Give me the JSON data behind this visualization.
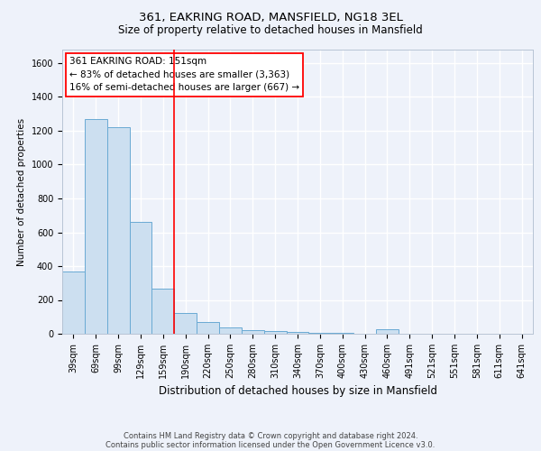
{
  "title_line1": "361, EAKRING ROAD, MANSFIELD, NG18 3EL",
  "title_line2": "Size of property relative to detached houses in Mansfield",
  "xlabel": "Distribution of detached houses by size in Mansfield",
  "ylabel": "Number of detached properties",
  "bar_labels": [
    "39sqm",
    "69sqm",
    "99sqm",
    "129sqm",
    "159sqm",
    "190sqm",
    "220sqm",
    "250sqm",
    "280sqm",
    "310sqm",
    "340sqm",
    "370sqm",
    "400sqm",
    "430sqm",
    "460sqm",
    "491sqm",
    "521sqm",
    "551sqm",
    "581sqm",
    "611sqm",
    "641sqm"
  ],
  "bar_values": [
    370,
    1270,
    1220,
    660,
    265,
    125,
    70,
    35,
    22,
    14,
    10,
    8,
    5,
    0,
    25,
    0,
    0,
    0,
    0,
    0,
    0
  ],
  "bar_color": "#ccdff0",
  "bar_edge_color": "#6aaad4",
  "annotation_text": "361 EAKRING ROAD: 151sqm\n← 83% of detached houses are smaller (3,363)\n16% of semi-detached houses are larger (667) →",
  "annotation_box_color": "white",
  "annotation_box_edge": "red",
  "vline_color": "red",
  "vline_x_index": 4.5,
  "ylim": [
    0,
    1680
  ],
  "yticks": [
    0,
    200,
    400,
    600,
    800,
    1000,
    1200,
    1400,
    1600
  ],
  "background_color": "#eef2fa",
  "grid_color": "white",
  "footer_line1": "Contains HM Land Registry data © Crown copyright and database right 2024.",
  "footer_line2": "Contains public sector information licensed under the Open Government Licence v3.0.",
  "title1_fontsize": 9.5,
  "title2_fontsize": 8.5,
  "xlabel_fontsize": 8.5,
  "ylabel_fontsize": 7.5,
  "tick_fontsize": 7.0,
  "annot_fontsize": 7.5,
  "footer_fontsize": 6.0
}
